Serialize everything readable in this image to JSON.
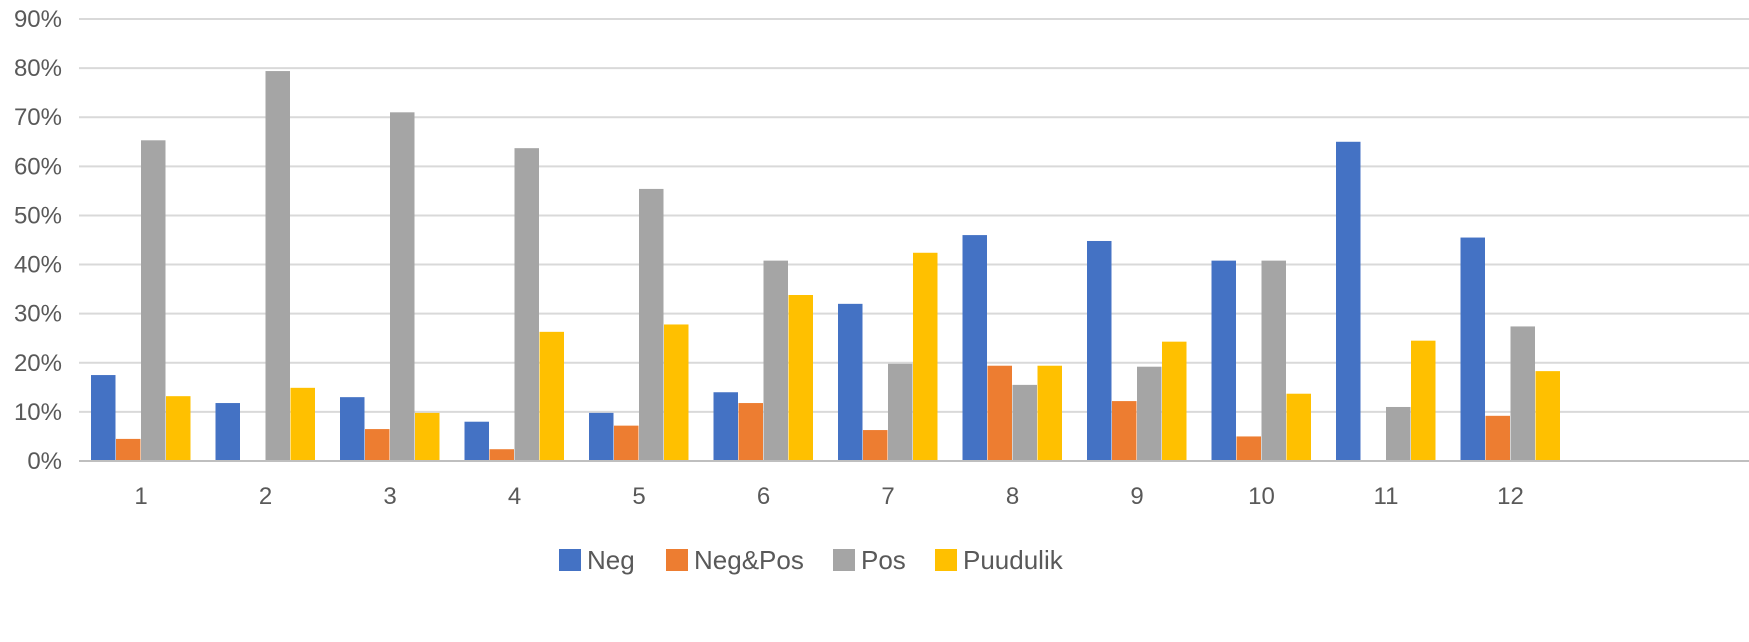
{
  "chart_data": {
    "type": "bar",
    "title": "",
    "xlabel": "",
    "ylabel": "",
    "ylim": [
      0,
      90
    ],
    "y_tick_values": [
      0,
      10,
      20,
      30,
      40,
      50,
      60,
      70,
      80,
      90
    ],
    "y_tick_labels": [
      "0%",
      "10%",
      "20%",
      "30%",
      "40%",
      "50%",
      "60%",
      "70%",
      "80%",
      "90%"
    ],
    "grid": true,
    "legend_position": "bottom",
    "categories": [
      "1",
      "2",
      "3",
      "4",
      "5",
      "6",
      "7",
      "8",
      "9",
      "10",
      "11",
      "12"
    ],
    "series": [
      {
        "name": "Neg",
        "color": "#4472c4",
        "values": [
          17.5,
          11.8,
          13.0,
          8.0,
          9.8,
          14.0,
          32.0,
          46.0,
          44.8,
          40.8,
          65.0,
          45.5
        ]
      },
      {
        "name": "Neg&Pos",
        "color": "#ed7d31",
        "values": [
          4.5,
          0,
          6.5,
          2.4,
          7.2,
          11.8,
          6.3,
          19.4,
          12.2,
          5.0,
          0,
          9.2
        ]
      },
      {
        "name": "Pos",
        "color": "#a5a5a5",
        "values": [
          65.3,
          79.4,
          71.0,
          63.7,
          55.4,
          40.8,
          19.8,
          15.5,
          19.2,
          40.8,
          11.0,
          27.4
        ]
      },
      {
        "name": "Puudulik",
        "color": "#ffc000",
        "values": [
          13.2,
          14.9,
          9.8,
          26.3,
          27.8,
          33.8,
          42.4,
          19.4,
          24.3,
          13.7,
          24.5,
          18.3
        ]
      }
    ]
  }
}
